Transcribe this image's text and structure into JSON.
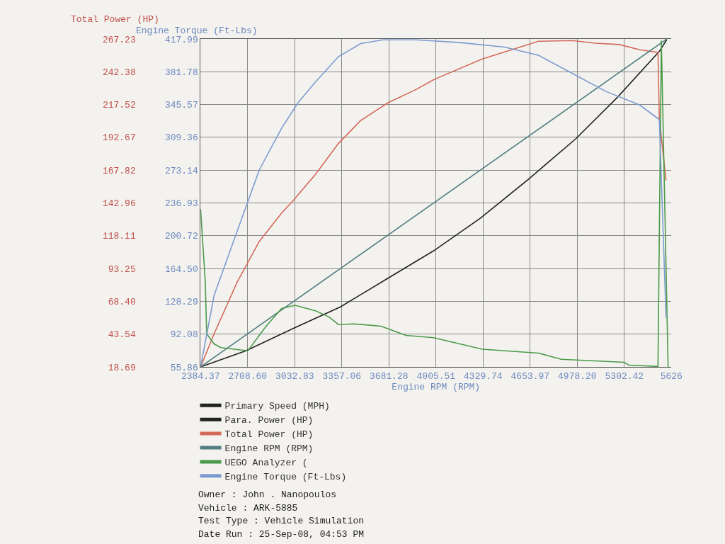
{
  "chart_data": {
    "type": "line",
    "xlabel": "Engine RPM (RPM)",
    "ylabel": "Total Power (HP)",
    "y2label": "Engine Torque (Ft-Lbs)",
    "xlim": [
      2384.37,
      5626
    ],
    "xticks": [
      2384.37,
      {
        "value": 2708.6,
        "label": "2708.60"
      },
      3032.83,
      3357.06,
      3681.28,
      4005.51,
      4329.74,
      4653.97,
      {
        "value": 4978.2,
        "label": "4978.20"
      },
      5302.42,
      5626
    ],
    "ylim": [
      18.69,
      267.23
    ],
    "yticks": [
      18.69,
      43.54,
      {
        "value": 68.4,
        "label": "68.40"
      },
      93.25,
      118.11,
      142.96,
      167.82,
      192.67,
      217.52,
      242.38,
      267.23
    ],
    "y2lim": [
      55.86,
      417.99
    ],
    "y2ticks": [
      55.86,
      92.08,
      128.29,
      {
        "value": 164.5,
        "label": "164.50"
      },
      200.72,
      236.93,
      273.14,
      309.36,
      345.57,
      381.78,
      417.99
    ],
    "grid": true,
    "legend": "bottom",
    "marker": "none",
    "line_style": "solid",
    "series": [
      {
        "name": "Primary Speed (MPH)",
        "color": "#222222"
      },
      {
        "name": "Para. Power (HP)",
        "color": "#222222",
        "x": [
          2384.37,
          2696.1,
          3021.7,
          3347.3,
          3673.0,
          3989.3,
          4310.3,
          4636.0,
          4966.3,
          5254.7,
          5543.1,
          5594.3
        ],
        "values": [
          18.7,
          30.9,
          47.8,
          64.2,
          85.8,
          106.7,
          131.3,
          160.4,
          191.4,
          223,
          257.8,
          266.7
        ]
      },
      {
        "name": "Total Power (HP)",
        "color": "#d4695a",
        "x": [
          2384.37,
          2477.4,
          2635.6,
          2789.1,
          2942.6,
          3021.7,
          3175.2,
          3333.4,
          3486.9,
          3673.0,
          3873.0,
          3989.3,
          4012.6,
          4324.2,
          4510.3,
          4710.4,
          4943.0,
          5101.2,
          5268.6,
          5408.2,
          5533.8,
          5543.1,
          5589.6
        ],
        "values": [
          18.7,
          43.8,
          82.8,
          113.9,
          135.3,
          144.7,
          164.6,
          188,
          205.4,
          218.8,
          229.2,
          236.4,
          237.5,
          252.1,
          258.5,
          265.5,
          266,
          264,
          263,
          259,
          257,
          206.8,
          160
        ]
      },
      {
        "name": "Engine RPM (RPM)",
        "color": "#4f7f80",
        "x": [
          2384.37,
          5594.3
        ],
        "values": [
          18.7,
          267.2
        ]
      },
      {
        "name": "UEGO Analyzer (",
        "color": "#4a9a4a",
        "x": [
          2384.37,
          2416.9,
          2426.2,
          2477.4,
          2523.9,
          2710.0,
          2835.6,
          2942.6,
          3035.6,
          3175.2,
          3268.2,
          3333.4,
          3440.4,
          3626.5,
          3798.6,
          3989.3,
          4324.2,
          4710.4,
          4868.5,
          5301.2,
          5333.8,
          5533.8,
          5557.1,
          5603.6
        ],
        "values": [
          138.3,
          82.8,
          43.8,
          36.1,
          33.3,
          30.9,
          49.6,
          63,
          65.4,
          61.2,
          56.6,
          50.8,
          51.3,
          49.6,
          42.6,
          40.8,
          32.1,
          29.2,
          24.5,
          22.2,
          20,
          19,
          266,
          18.7
        ]
      },
      {
        "name": "Engine Torque (Ft-Lbs)",
        "color": "#7b9bd0",
        "axis": "y2",
        "x": [
          2384.37,
          2477.4,
          2635.6,
          2789.1,
          2942.6,
          3054.3,
          3175.2,
          3333.4,
          3486.9,
          3640.4,
          3873.0,
          4170.7,
          4477.8,
          4710.4,
          4943.0,
          5175.6,
          5408.2,
          5543.1,
          5589.6
        ],
        "values": [
          55.9,
          134.8,
          205.4,
          273.5,
          319.5,
          347.4,
          370.5,
          398.4,
          412.9,
          417,
          417,
          414,
          409,
          400,
          380,
          360,
          345,
          329,
          110
        ]
      }
    ],
    "annotations": [
      "Owner : John . Nanopoulos",
      "Vehicle : ARK-5885",
      "Test Type : Vehicle Simulation",
      "Date Run : 25-Sep-08, 04:53 PM"
    ]
  }
}
